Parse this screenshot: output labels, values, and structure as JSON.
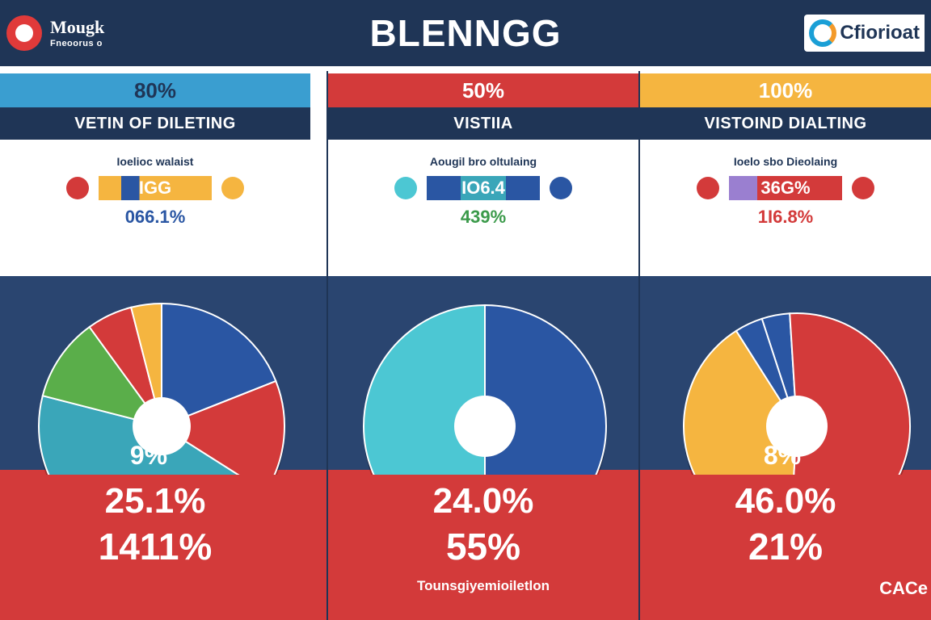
{
  "header": {
    "brand_name": "Mougk",
    "brand_sub": "Fneoorus o",
    "title": "BLENNGG",
    "brand_right": "Cfiorioat",
    "logo_icon": "ring-logo-icon",
    "brand_right_icon": "swirl-logo-icon"
  },
  "colors": {
    "navy": "#1f3556",
    "blue": "#2a56a3",
    "red": "#d33a3a",
    "green": "#5aae4a",
    "teal": "#3aa6b9",
    "cyan": "#4cc7d3",
    "yellow": "#f5b540"
  },
  "chart_data": [
    {
      "type": "pie",
      "title": "80%",
      "subtitle": "VETIN OF DILETING",
      "legend_title": "Ioelioc walaist",
      "legend_value": "066.1%",
      "legend_bar_text": "IGG",
      "inside_label": "9%",
      "stats": [
        "25.1%",
        "1411%"
      ],
      "slices": [
        {
          "value": 19,
          "color": "#2a56a3"
        },
        {
          "value": 15,
          "color": "#d33a3a"
        },
        {
          "value": 45,
          "color": "#3aa6b9"
        },
        {
          "value": 11,
          "color": "#5aae4a"
        },
        {
          "value": 6,
          "color": "#d33a3a"
        },
        {
          "value": 4,
          "color": "#f5b540"
        }
      ]
    },
    {
      "type": "pie",
      "title": "50%",
      "subtitle": "VISTIIA",
      "legend_title": "Aougil bro oltulaing",
      "legend_value": "439%",
      "legend_bar_text": "IO6.4",
      "inside_label": "",
      "stats": [
        "24.0%",
        "55%"
      ],
      "footer_note": "Tounsgiyemioiletlon",
      "slices": [
        {
          "value": 50,
          "color": "#2a56a3"
        },
        {
          "value": 50,
          "color": "#4cc7d3"
        }
      ]
    },
    {
      "type": "pie",
      "title": "100%",
      "subtitle": "VISTOIND DIALTING",
      "legend_title": "Ioelo sbo Dieolaing",
      "legend_value": "1I6.8%",
      "legend_bar_text": "36G%",
      "inside_label": "8%",
      "stats": [
        "46.0%",
        "21%"
      ],
      "footer_logo": "CACe",
      "slices": [
        {
          "value": 4,
          "color": "#2a56a3"
        },
        {
          "value": 52,
          "color": "#d33a3a"
        },
        {
          "value": 40,
          "color": "#f5b540"
        },
        {
          "value": 4,
          "color": "#2a56a3"
        }
      ]
    }
  ]
}
